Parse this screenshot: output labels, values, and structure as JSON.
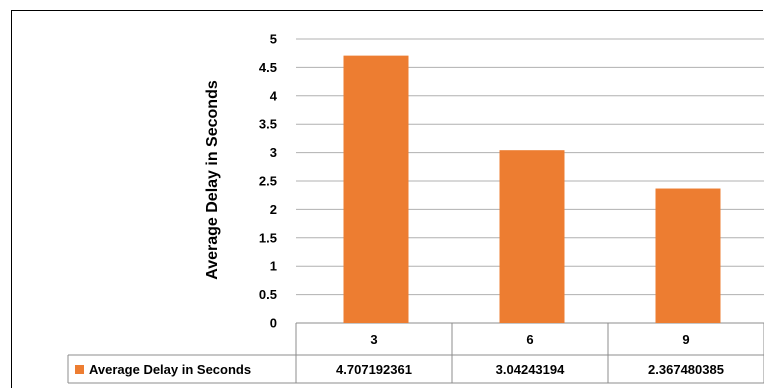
{
  "chart_data": {
    "type": "bar",
    "categories": [
      "3",
      "6",
      "9"
    ],
    "series": [
      {
        "name": "Average Delay in Seconds",
        "values": [
          4.707192361,
          3.04243194,
          2.367480385
        ]
      }
    ],
    "data_table": [
      "4.707192361",
      "3.04243194",
      "2.367480385"
    ],
    "ylabel": "Average Delay in Seconds",
    "xlabel": "",
    "ylim": [
      0,
      5
    ],
    "yticks": [
      "0",
      "0.5",
      "1",
      "1.5",
      "2",
      "2.5",
      "3",
      "3.5",
      "4",
      "4.5",
      "5"
    ],
    "grid": true,
    "legend": "data-table-left",
    "colors": {
      "bar": "#ED7D31",
      "grid": "#B0B0B0",
      "table_border": "#8C8C8C"
    }
  }
}
